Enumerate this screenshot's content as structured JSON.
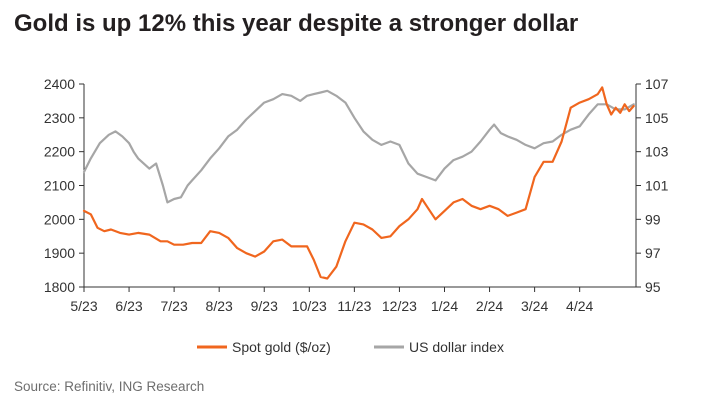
{
  "title": "Gold is up 12% this year despite a stronger dollar",
  "source": "Source: Refinitiv, ING Research",
  "colors": {
    "gold": "#f0661e",
    "dollar": "#a6a6a6",
    "axis": "#333333",
    "text": "#333333"
  },
  "chart_data": {
    "type": "line",
    "title": "Gold is up 12% this year despite a stronger dollar",
    "categories": [
      "5/23",
      "6/23",
      "7/23",
      "8/23",
      "9/23",
      "10/23",
      "11/23",
      "12/23",
      "1/24",
      "2/24",
      "3/24",
      "4/24"
    ],
    "x_range": [
      0,
      12.25
    ],
    "y_left": {
      "label": "Spot gold ($/oz)",
      "ticks": [
        1800,
        1900,
        2000,
        2100,
        2200,
        2300,
        2400
      ],
      "range": [
        1800,
        2400
      ]
    },
    "y_right": {
      "label": "US dollar index",
      "ticks": [
        95,
        97,
        99,
        101,
        103,
        105,
        107
      ],
      "range": [
        95,
        107
      ]
    },
    "legend_position": "bottom-center",
    "series": [
      {
        "name": "Spot gold ($/oz)",
        "axis": "left",
        "x": [
          0,
          0.15,
          0.3,
          0.45,
          0.6,
          0.8,
          1.0,
          1.2,
          1.45,
          1.7,
          1.85,
          2.0,
          2.2,
          2.4,
          2.6,
          2.8,
          3.0,
          3.2,
          3.4,
          3.6,
          3.8,
          4.0,
          4.2,
          4.4,
          4.6,
          4.8,
          4.95,
          5.1,
          5.25,
          5.4,
          5.6,
          5.8,
          6.0,
          6.2,
          6.4,
          6.6,
          6.8,
          7.0,
          7.2,
          7.4,
          7.5,
          7.6,
          7.8,
          8.0,
          8.2,
          8.4,
          8.6,
          8.8,
          9.0,
          9.2,
          9.4,
          9.6,
          9.8,
          10.0,
          10.2,
          10.4,
          10.6,
          10.8,
          11.0,
          11.2,
          11.4,
          11.5,
          11.6,
          11.7,
          11.8,
          11.9,
          12.0,
          12.1,
          12.2
        ],
        "values": [
          2025,
          2015,
          1975,
          1965,
          1970,
          1960,
          1955,
          1960,
          1955,
          1935,
          1935,
          1925,
          1925,
          1930,
          1930,
          1965,
          1960,
          1945,
          1915,
          1900,
          1890,
          1905,
          1935,
          1940,
          1920,
          1920,
          1920,
          1880,
          1830,
          1825,
          1860,
          1935,
          1990,
          1985,
          1970,
          1945,
          1950,
          1980,
          2000,
          2030,
          2060,
          2040,
          2000,
          2025,
          2050,
          2060,
          2040,
          2030,
          2040,
          2030,
          2010,
          2020,
          2030,
          2125,
          2170,
          2170,
          2230,
          2330,
          2345,
          2355,
          2370,
          2390,
          2340,
          2310,
          2330,
          2315,
          2340,
          2320,
          2335
        ]
      },
      {
        "name": "US dollar index",
        "axis": "right",
        "x": [
          0,
          0.15,
          0.35,
          0.55,
          0.7,
          0.85,
          1.0,
          1.1,
          1.2,
          1.45,
          1.6,
          1.75,
          1.85,
          2.0,
          2.15,
          2.3,
          2.4,
          2.6,
          2.8,
          3.0,
          3.2,
          3.4,
          3.6,
          3.8,
          4.0,
          4.2,
          4.4,
          4.6,
          4.8,
          4.95,
          5.1,
          5.25,
          5.4,
          5.6,
          5.8,
          6.0,
          6.2,
          6.4,
          6.6,
          6.8,
          7.0,
          7.2,
          7.4,
          7.6,
          7.8,
          8.0,
          8.2,
          8.4,
          8.6,
          8.8,
          9.0,
          9.1,
          9.25,
          9.4,
          9.6,
          9.8,
          10.0,
          10.2,
          10.4,
          10.6,
          10.8,
          11.0,
          11.2,
          11.4,
          11.6,
          11.8,
          12.0,
          12.2
        ],
        "values": [
          101.8,
          102.6,
          103.5,
          104.0,
          104.2,
          103.9,
          103.5,
          103.0,
          102.6,
          102.0,
          102.3,
          101.0,
          100.0,
          100.2,
          100.3,
          101.0,
          101.3,
          101.9,
          102.6,
          103.2,
          103.9,
          104.3,
          104.9,
          105.4,
          105.9,
          106.1,
          106.4,
          106.3,
          106.0,
          106.3,
          106.4,
          106.5,
          106.6,
          106.3,
          105.9,
          105.0,
          104.2,
          103.7,
          103.4,
          103.6,
          103.4,
          102.3,
          101.7,
          101.5,
          101.3,
          102.0,
          102.5,
          102.7,
          103.0,
          103.6,
          104.3,
          104.6,
          104.1,
          103.9,
          103.7,
          103.4,
          103.2,
          103.5,
          103.6,
          104.0,
          104.3,
          104.5,
          105.2,
          105.8,
          105.8,
          105.5,
          105.5,
          105.8
        ]
      }
    ]
  }
}
